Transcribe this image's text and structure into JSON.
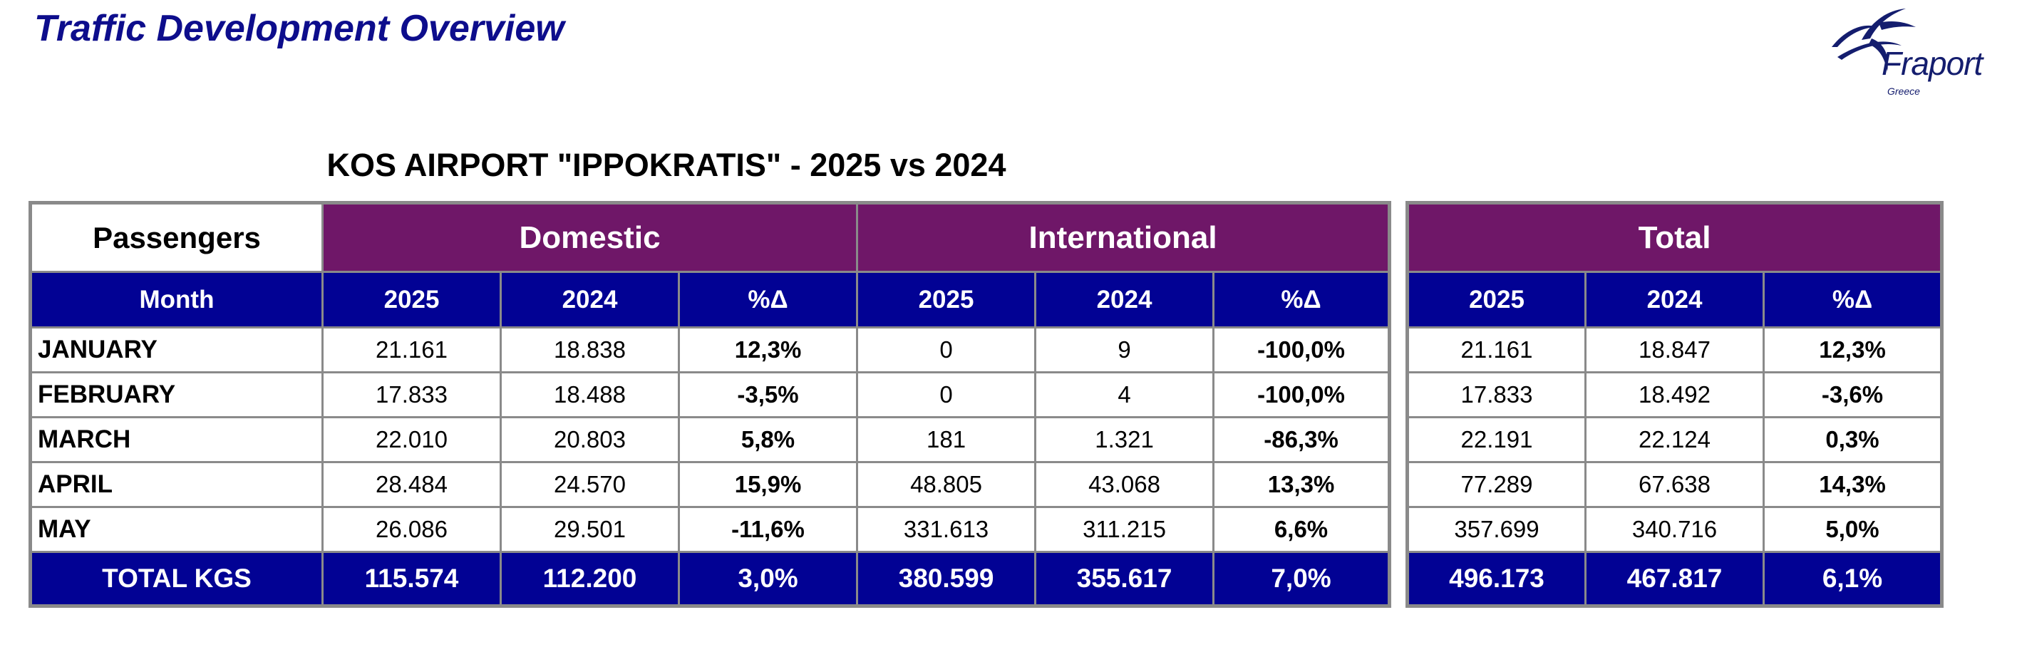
{
  "header": {
    "heading": "Traffic Development Overview",
    "logo_text": "Fraport",
    "logo_sub": "Greece"
  },
  "report_title": "KOS AIRPORT \"IPPOKRATIS\" - 2025 vs 2024",
  "table": {
    "corner_label": "Passengers",
    "groups": [
      "Domestic",
      "International",
      "Total"
    ],
    "month_header": "Month",
    "year_headers": [
      "2025",
      "2024",
      "%Δ"
    ],
    "rows": [
      {
        "month": "JANUARY",
        "cells": [
          "21.161",
          "18.838",
          "12,3%",
          "0",
          "9",
          "-100,0%",
          "21.161",
          "18.847",
          "12,3%"
        ]
      },
      {
        "month": "FEBRUARY",
        "cells": [
          "17.833",
          "18.488",
          "-3,5%",
          "0",
          "4",
          "-100,0%",
          "17.833",
          "18.492",
          "-3,6%"
        ]
      },
      {
        "month": "MARCH",
        "cells": [
          "22.010",
          "20.803",
          "5,8%",
          "181",
          "1.321",
          "-86,3%",
          "22.191",
          "22.124",
          "0,3%"
        ]
      },
      {
        "month": "APRIL",
        "cells": [
          "28.484",
          "24.570",
          "15,9%",
          "48.805",
          "43.068",
          "13,3%",
          "77.289",
          "67.638",
          "14,3%"
        ]
      },
      {
        "month": "MAY",
        "cells": [
          "26.086",
          "29.501",
          "-11,6%",
          "331.613",
          "311.215",
          "6,6%",
          "357.699",
          "340.716",
          "5,0%"
        ]
      }
    ],
    "total": {
      "label": "TOTAL KGS",
      "cells": [
        "115.574",
        "112.200",
        "3,0%",
        "380.599",
        "355.617",
        "7,0%",
        "496.173",
        "467.817",
        "6,1%"
      ]
    }
  },
  "colors": {
    "heading": "#0d0d8c",
    "group_header": "#6f1768",
    "year_header": "#020294",
    "border": "#8a8a8a"
  }
}
